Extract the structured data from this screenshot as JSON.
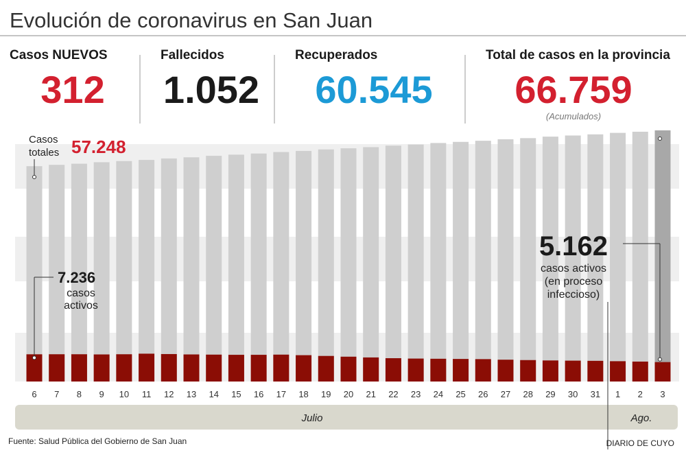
{
  "title": "Evolución de coronavirus en San Juan",
  "stats": [
    {
      "label": "Casos NUEVOS",
      "value": "312",
      "color": "#d3202f"
    },
    {
      "label": "Fallecidos",
      "value": "1.052",
      "color": "#1a1a1a"
    },
    {
      "label": "Recuperados",
      "value": "60.545",
      "color": "#1c9ad6"
    },
    {
      "label": "Total de casos en la provincia",
      "value": "66.759",
      "color": "#d3202f",
      "note": "(Acumulados)"
    }
  ],
  "chart_data": {
    "type": "bar",
    "categories": [
      "6",
      "7",
      "8",
      "9",
      "10",
      "11",
      "12",
      "13",
      "14",
      "15",
      "16",
      "17",
      "18",
      "19",
      "20",
      "21",
      "22",
      "23",
      "24",
      "25",
      "26",
      "27",
      "28",
      "29",
      "30",
      "31",
      "1",
      "2",
      "3"
    ],
    "series": [
      {
        "name_lines": [
          "Casos",
          "totales"
        ],
        "color": "#cfcfcf",
        "highlight_color": "#a8a8a8",
        "values": [
          57248,
          57600,
          57900,
          58300,
          58600,
          58900,
          59300,
          59600,
          60000,
          60300,
          60600,
          61000,
          61300,
          61700,
          62000,
          62300,
          62700,
          63000,
          63400,
          63700,
          64000,
          64400,
          64700,
          65100,
          65400,
          65700,
          66100,
          66400,
          66759
        ],
        "value_labels": [
          "57.248",
          null,
          null,
          null,
          null,
          null,
          null,
          null,
          null,
          null,
          null,
          null,
          null,
          null,
          null,
          null,
          null,
          null,
          null,
          null,
          null,
          null,
          null,
          null,
          null,
          null,
          null,
          null,
          null
        ],
        "label_color": "#d3202f"
      },
      {
        "name_lines": [
          "casos",
          "activos"
        ],
        "last_name_lines": [
          "casos activos",
          "(en proceso",
          "infeccioso)"
        ],
        "color": "#8b0d05",
        "values": [
          7236,
          7250,
          7250,
          7200,
          7250,
          7400,
          7300,
          7200,
          7150,
          7100,
          7100,
          7150,
          7000,
          6800,
          6600,
          6400,
          6200,
          6100,
          6050,
          6000,
          5950,
          5800,
          5700,
          5600,
          5550,
          5500,
          5400,
          5300,
          5162
        ],
        "value_labels": [
          "7.236",
          null,
          null,
          null,
          null,
          null,
          null,
          null,
          null,
          null,
          null,
          null,
          null,
          null,
          null,
          null,
          null,
          null,
          null,
          null,
          null,
          null,
          null,
          null,
          null,
          null,
          null,
          null,
          "5.162"
        ],
        "label_color": "#1a1a1a"
      }
    ],
    "months": [
      "Julio",
      "Ago."
    ]
  },
  "footer": {
    "source": "Fuente: Salud Pública del Gobierno de San Juan",
    "brand": "DIARIO DE CUYO"
  }
}
